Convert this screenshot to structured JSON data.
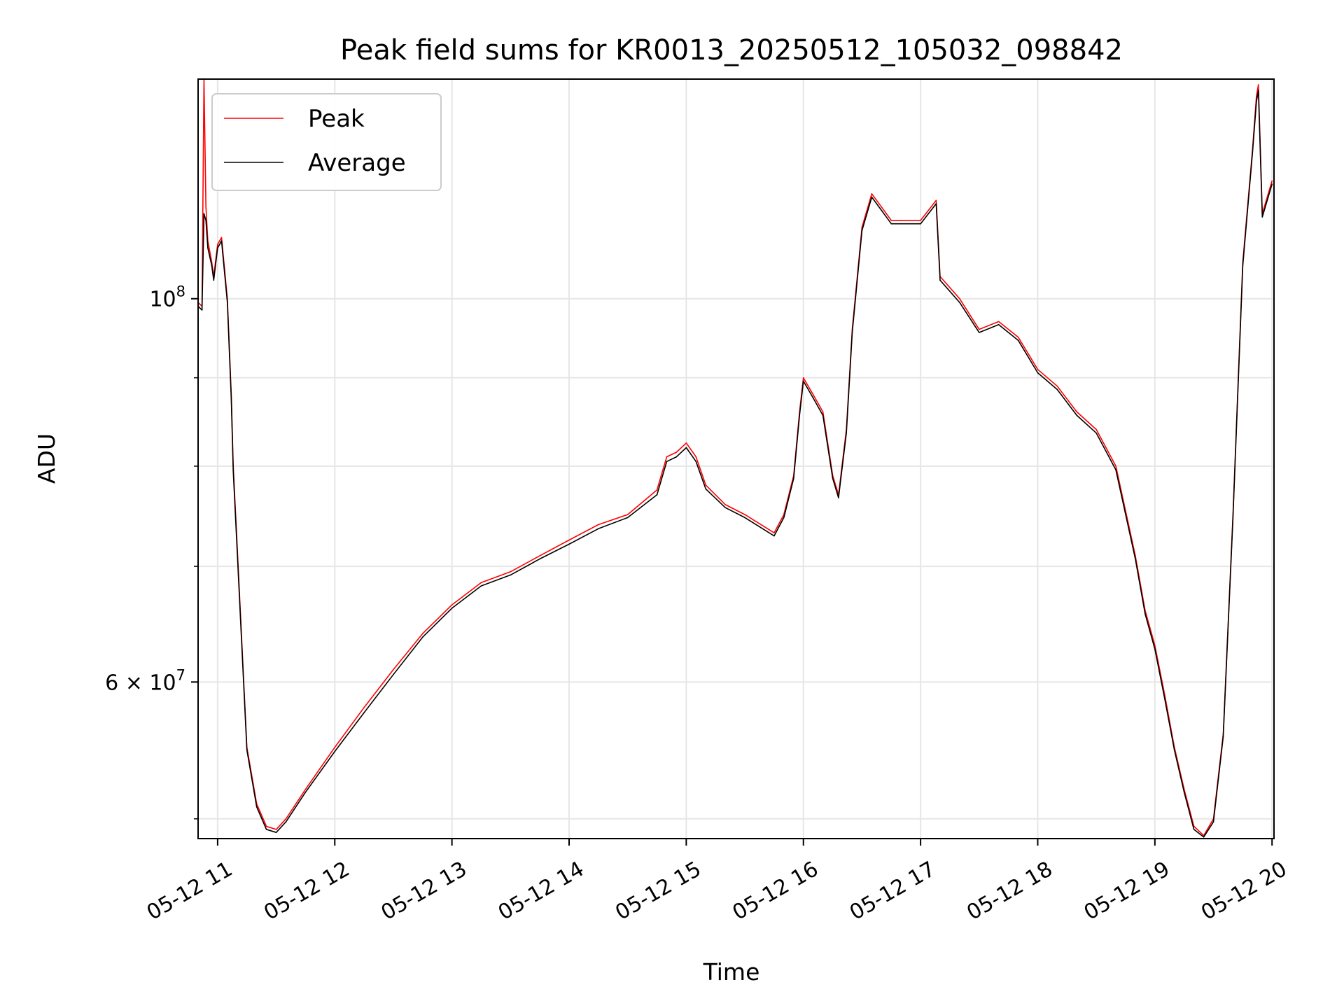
{
  "chart_data": {
    "type": "line",
    "title": "Peak field sums for KR0013_20250512_105032_098842",
    "xlabel": "Time",
    "ylabel": "ADU",
    "x_tick_labels": [
      "05-12 11",
      "05-12 12",
      "05-12 13",
      "05-12 14",
      "05-12 15",
      "05-12 16",
      "05-12 17",
      "05-12 18",
      "05-12 19",
      "05-12 20"
    ],
    "y_tick_labels": {
      "major_1e8": "10",
      "major_1e8_exp": "8",
      "major_6e7": "6 × 10",
      "major_6e7_exp": "7"
    },
    "yscale": "log",
    "xlim": [
      "05-12 10:50",
      "05-12 20:01"
    ],
    "ylim": [
      48700000,
      134000000
    ],
    "grid": true,
    "legend_position": "top-left",
    "colors": {
      "Peak": "#ff0000",
      "Average": "#000000",
      "grid": "#e6e6e6"
    },
    "series": [
      {
        "name": "Peak",
        "x": [
          "05-12 10:50",
          "05-12 10:52",
          "05-12 10:53",
          "05-12 10:54",
          "05-12 10:55",
          "05-12 10:57",
          "05-12 10:58",
          "05-12 11:00",
          "05-12 11:02",
          "05-12 11:05",
          "05-12 11:07",
          "05-12 11:08",
          "05-12 11:10",
          "05-12 11:15",
          "05-12 11:20",
          "05-12 11:25",
          "05-12 11:30",
          "05-12 11:35",
          "05-12 11:45",
          "05-12 12:00",
          "05-12 12:15",
          "05-12 12:30",
          "05-12 12:45",
          "05-12 13:00",
          "05-12 13:15",
          "05-12 13:30",
          "05-12 13:45",
          "05-12 14:00",
          "05-12 14:15",
          "05-12 14:30",
          "05-12 14:45",
          "05-12 14:50",
          "05-12 14:55",
          "05-12 15:00",
          "05-12 15:05",
          "05-12 15:10",
          "05-12 15:20",
          "05-12 15:30",
          "05-12 15:45",
          "05-12 15:50",
          "05-12 15:55",
          "05-12 15:58",
          "05-12 16:00",
          "05-12 16:05",
          "05-12 16:10",
          "05-12 16:15",
          "05-12 16:18",
          "05-12 16:22",
          "05-12 16:25",
          "05-12 16:30",
          "05-12 16:35",
          "05-12 16:40",
          "05-12 16:45",
          "05-12 16:50",
          "05-12 17:00",
          "05-12 17:08",
          "05-12 17:10",
          "05-12 17:20",
          "05-12 17:30",
          "05-12 17:40",
          "05-12 17:50",
          "05-12 18:00",
          "05-12 18:10",
          "05-12 18:20",
          "05-12 18:30",
          "05-12 18:40",
          "05-12 18:50",
          "05-12 18:55",
          "05-12 19:00",
          "05-12 19:05",
          "05-12 19:10",
          "05-12 19:15",
          "05-12 19:20",
          "05-12 19:25",
          "05-12 19:30",
          "05-12 19:35",
          "05-12 19:40",
          "05-12 19:45",
          "05-12 19:50",
          "05-12 19:52",
          "05-12 19:53",
          "05-12 19:55",
          "05-12 20:00"
        ],
        "y": [
          99500000,
          99000000,
          134000000,
          113000000,
          108000000,
          105000000,
          103000000,
          107500000,
          108500000,
          100000000,
          88000000,
          80000000,
          72000000,
          55000000,
          51000000,
          49500000,
          49300000,
          50000000,
          52000000,
          55000000,
          58000000,
          61000000,
          64000000,
          66500000,
          68500000,
          69500000,
          71000000,
          72500000,
          74000000,
          75000000,
          77500000,
          81000000,
          81500000,
          82500000,
          81000000,
          78000000,
          76000000,
          75000000,
          73200000,
          75000000,
          79000000,
          86000000,
          90000000,
          88000000,
          86000000,
          79000000,
          77000000,
          84000000,
          96000000,
          110000000,
          115000000,
          113000000,
          111000000,
          111000000,
          111000000,
          114000000,
          103000000,
          100000000,
          96000000,
          97000000,
          95000000,
          91000000,
          89000000,
          86000000,
          84000000,
          80000000,
          71000000,
          66000000,
          63000000,
          59000000,
          55000000,
          52000000,
          49500000,
          48900000,
          50000000,
          56000000,
          75000000,
          105000000,
          122000000,
          131000000,
          133000000,
          112000000,
          117000000
        ]
      },
      {
        "name": "Average",
        "x": [
          "05-12 10:50",
          "05-12 10:52",
          "05-12 10:53",
          "05-12 10:54",
          "05-12 10:55",
          "05-12 10:57",
          "05-12 10:58",
          "05-12 11:00",
          "05-12 11:02",
          "05-12 11:05",
          "05-12 11:07",
          "05-12 11:08",
          "05-12 11:10",
          "05-12 11:15",
          "05-12 11:20",
          "05-12 11:25",
          "05-12 11:30",
          "05-12 11:35",
          "05-12 11:45",
          "05-12 12:00",
          "05-12 12:15",
          "05-12 12:30",
          "05-12 12:45",
          "05-12 13:00",
          "05-12 13:15",
          "05-12 13:30",
          "05-12 13:45",
          "05-12 14:00",
          "05-12 14:15",
          "05-12 14:30",
          "05-12 14:45",
          "05-12 14:50",
          "05-12 14:55",
          "05-12 15:00",
          "05-12 15:05",
          "05-12 15:10",
          "05-12 15:20",
          "05-12 15:30",
          "05-12 15:45",
          "05-12 15:50",
          "05-12 15:55",
          "05-12 15:58",
          "05-12 16:00",
          "05-12 16:05",
          "05-12 16:10",
          "05-12 16:15",
          "05-12 16:18",
          "05-12 16:22",
          "05-12 16:25",
          "05-12 16:30",
          "05-12 16:35",
          "05-12 16:40",
          "05-12 16:45",
          "05-12 16:50",
          "05-12 17:00",
          "05-12 17:08",
          "05-12 17:10",
          "05-12 17:20",
          "05-12 17:30",
          "05-12 17:40",
          "05-12 17:50",
          "05-12 18:00",
          "05-12 18:10",
          "05-12 18:20",
          "05-12 18:30",
          "05-12 18:40",
          "05-12 18:50",
          "05-12 18:55",
          "05-12 19:00",
          "05-12 19:05",
          "05-12 19:10",
          "05-12 19:15",
          "05-12 19:20",
          "05-12 19:25",
          "05-12 19:30",
          "05-12 19:35",
          "05-12 19:40",
          "05-12 19:45",
          "05-12 19:50",
          "05-12 19:52",
          "05-12 19:53",
          "05-12 19:55",
          "05-12 20:00"
        ],
        "y": [
          99000000,
          98500000,
          112000000,
          111000000,
          107000000,
          104500000,
          102500000,
          107000000,
          108000000,
          99500000,
          87500000,
          79500000,
          71500000,
          54800000,
          50800000,
          49300000,
          49100000,
          49800000,
          51800000,
          54700000,
          57600000,
          60600000,
          63700000,
          66200000,
          68200000,
          69200000,
          70700000,
          72100000,
          73600000,
          74700000,
          77000000,
          80500000,
          81000000,
          82000000,
          80500000,
          77600000,
          75700000,
          74700000,
          72900000,
          74700000,
          78700000,
          85600000,
          89600000,
          87600000,
          85600000,
          78700000,
          76700000,
          83600000,
          95600000,
          109500000,
          114500000,
          112500000,
          110500000,
          110500000,
          110500000,
          113500000,
          102500000,
          99500000,
          95600000,
          96600000,
          94600000,
          90600000,
          88600000,
          85600000,
          83600000,
          79600000,
          70700000,
          65700000,
          62700000,
          58700000,
          54800000,
          51800000,
          49300000,
          48800000,
          49800000,
          55800000,
          74700000,
          104500000,
          121500000,
          130000000,
          132000000,
          111500000,
          116500000
        ]
      }
    ]
  }
}
